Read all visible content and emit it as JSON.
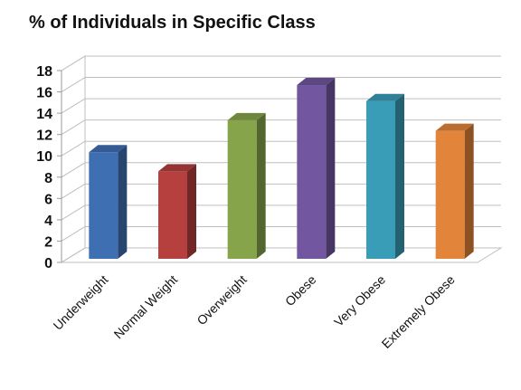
{
  "chart_data": {
    "type": "bar",
    "title": "% of Individuals in Specific Class",
    "categories": [
      "Underweight",
      "Normal Weight",
      "Overweight",
      "Obese",
      "Very Obese",
      "Extremely Obese"
    ],
    "values": [
      10,
      8.2,
      13,
      16.3,
      14.8,
      12
    ],
    "ylim": [
      0,
      18
    ],
    "yticks": [
      0,
      2,
      4,
      6,
      8,
      10,
      12,
      14,
      16,
      18
    ],
    "grid": true,
    "colors": [
      "#3f6fb3",
      "#b5403e",
      "#86a54a",
      "#7257a0",
      "#3a9db8",
      "#e2853a"
    ],
    "style": "3d"
  }
}
